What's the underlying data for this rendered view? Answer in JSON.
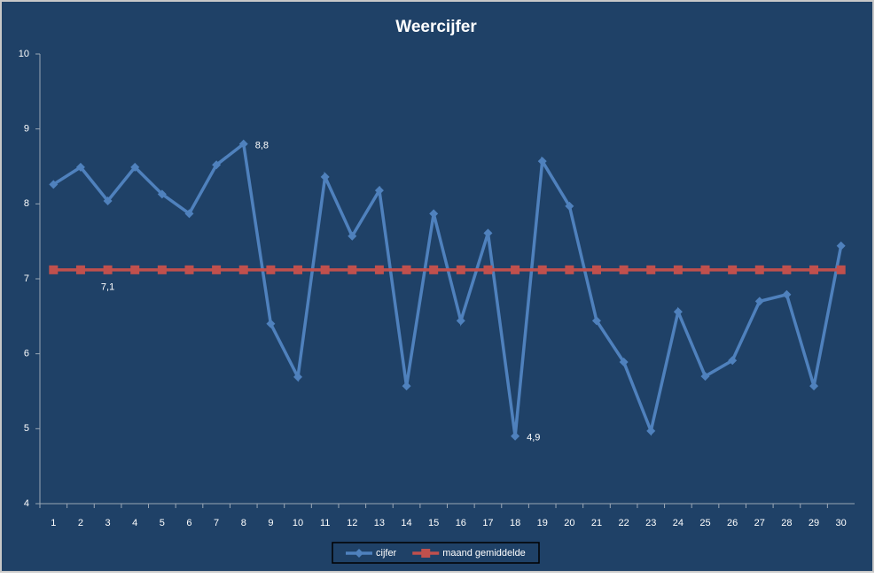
{
  "chart_data": {
    "type": "line",
    "title": "Weercijfer",
    "categories": [
      "1",
      "2",
      "3",
      "4",
      "5",
      "6",
      "7",
      "8",
      "9",
      "10",
      "11",
      "12",
      "13",
      "14",
      "15",
      "16",
      "17",
      "18",
      "19",
      "20",
      "21",
      "22",
      "23",
      "24",
      "25",
      "26",
      "27",
      "28",
      "29",
      "30"
    ],
    "series": [
      {
        "name": "cijfer",
        "color": "#4f81bd",
        "marker": "diamond",
        "values": [
          8.26,
          8.49,
          8.04,
          8.49,
          8.13,
          7.87,
          8.52,
          8.8,
          6.4,
          5.69,
          8.36,
          7.57,
          8.18,
          5.57,
          7.87,
          6.44,
          7.61,
          4.9,
          8.57,
          7.97,
          6.44,
          5.89,
          4.97,
          6.56,
          5.7,
          5.91,
          6.7,
          6.79,
          5.57,
          7.44
        ],
        "value_labels": [
          null,
          null,
          null,
          null,
          null,
          null,
          null,
          "8,8",
          null,
          null,
          null,
          null,
          null,
          null,
          null,
          null,
          null,
          "4,9",
          null,
          null,
          null,
          null,
          null,
          null,
          null,
          null,
          null,
          null,
          null,
          null
        ]
      },
      {
        "name": "maand gemiddelde",
        "color": "#c0504d",
        "marker": "square",
        "values": [
          7.12,
          7.12,
          7.12,
          7.12,
          7.12,
          7.12,
          7.12,
          7.12,
          7.12,
          7.12,
          7.12,
          7.12,
          7.12,
          7.12,
          7.12,
          7.12,
          7.12,
          7.12,
          7.12,
          7.12,
          7.12,
          7.12,
          7.12,
          7.12,
          7.12,
          7.12,
          7.12,
          7.12,
          7.12,
          7.12
        ],
        "value_labels": [
          null,
          null,
          "7,1",
          null,
          null,
          null,
          null,
          null,
          null,
          null,
          null,
          null,
          null,
          null,
          null,
          null,
          null,
          null,
          null,
          null,
          null,
          null,
          null,
          null,
          null,
          null,
          null,
          null,
          null,
          null
        ]
      }
    ],
    "ylim": [
      4,
      10
    ],
    "yticks": [
      4,
      5,
      6,
      7,
      8,
      9,
      10
    ],
    "grid": false,
    "legend": "bottom"
  }
}
